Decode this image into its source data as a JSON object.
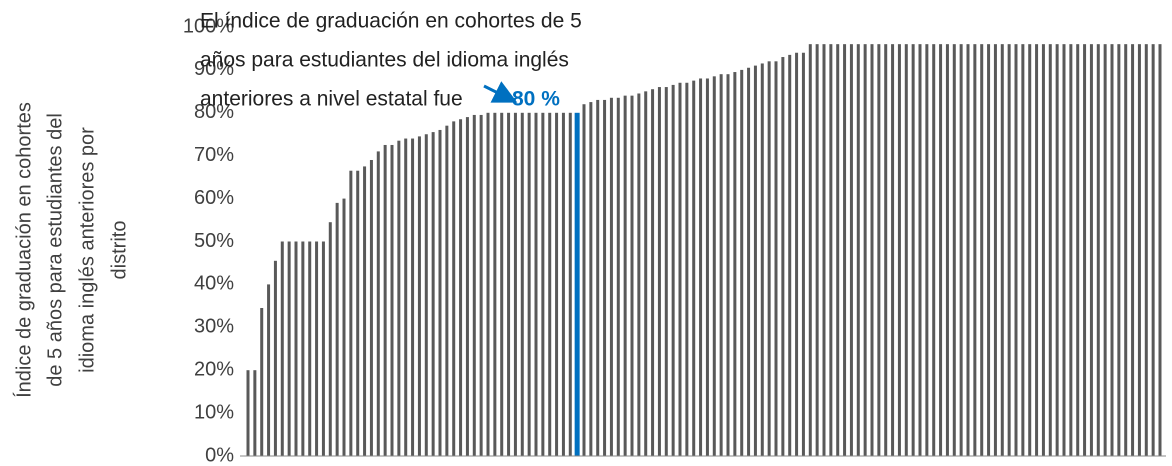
{
  "chart_data": {
    "type": "bar",
    "ylabel_lines": [
      "Índice de graduación en cohortes",
      "de 5 años para estudiantes del",
      "idioma inglés anteriores por",
      "distrito"
    ],
    "annotation_lines": [
      "El índice de graduación en cohortes de 5",
      "años para estudiantes del idioma inglés",
      "anteriores a nivel estatal fue"
    ],
    "categories": [
      null,
      null,
      null,
      null,
      null,
      null,
      null,
      null,
      null,
      null,
      null,
      null,
      null,
      null,
      null,
      null,
      null,
      null,
      null,
      null,
      null,
      null,
      null,
      null,
      null,
      null,
      null,
      null,
      null,
      null,
      null,
      null,
      null,
      null,
      null,
      null,
      null,
      null,
      null,
      null,
      null,
      null,
      null,
      null,
      null,
      null,
      null,
      null,
      null,
      null,
      null,
      null,
      null,
      null,
      null,
      null,
      null,
      null,
      null,
      null,
      null,
      null,
      null,
      null,
      null,
      null,
      null,
      null,
      null,
      null,
      null,
      null,
      null,
      null,
      null,
      null,
      null,
      null,
      null,
      null,
      null,
      null,
      null,
      null,
      null,
      null,
      null,
      null,
      null,
      null,
      null,
      null,
      null,
      null,
      null,
      null,
      null,
      null,
      null,
      null,
      null,
      null,
      null,
      null,
      null,
      null,
      null,
      null,
      null,
      null,
      null,
      null,
      null,
      null,
      null,
      null,
      null,
      null,
      null,
      null,
      null,
      null,
      null,
      null,
      null,
      null,
      null,
      null,
      null,
      null,
      null,
      null,
      null,
      null
    ],
    "values": [
      20,
      20,
      34.5,
      40,
      45.5,
      50,
      50,
      50,
      50,
      50,
      50,
      50,
      54.5,
      59,
      60,
      66.5,
      66.5,
      67.5,
      69,
      71,
      72.5,
      72.5,
      73.5,
      74,
      74,
      74.5,
      75,
      75.5,
      76,
      77,
      78,
      78.5,
      79,
      79.5,
      79.5,
      80,
      80,
      80,
      80,
      80,
      80,
      80,
      80,
      80,
      80,
      80,
      80,
      80,
      80,
      82,
      82.5,
      83,
      83,
      83.5,
      83.5,
      84,
      84,
      84.5,
      85,
      85.5,
      86,
      86,
      86.5,
      87,
      87,
      87.5,
      88,
      88,
      88.5,
      89,
      89,
      89.5,
      90,
      90.5,
      91,
      91.5,
      92,
      92,
      93,
      93.5,
      94,
      94,
      96,
      96,
      96,
      96,
      96,
      96,
      96,
      96,
      96,
      96,
      96,
      96,
      96,
      96,
      96,
      96,
      96,
      96,
      96,
      96,
      96,
      96,
      96,
      96,
      96,
      96,
      96,
      96,
      96,
      96,
      96,
      96,
      96,
      96,
      96,
      96,
      96,
      96,
      96,
      96,
      96,
      96,
      96,
      96,
      96,
      96,
      96,
      96,
      96,
      96,
      96,
      96
    ],
    "color": "#595959",
    "highlight": {
      "index": 48,
      "color": "#0070c0",
      "label": "80 %"
    },
    "ylim": [
      0,
      100
    ],
    "yticks": [
      {
        "value": 0,
        "label": "0%"
      },
      {
        "value": 10,
        "label": "10%"
      },
      {
        "value": 20,
        "label": "20%"
      },
      {
        "value": 30,
        "label": "30%"
      },
      {
        "value": 40,
        "label": "40%"
      },
      {
        "value": 50,
        "label": "50%"
      },
      {
        "value": 60,
        "label": "60%"
      },
      {
        "value": 70,
        "label": "70%"
      },
      {
        "value": 80,
        "label": "80%"
      },
      {
        "value": 90,
        "label": "90%"
      },
      {
        "value": 100,
        "label": "100%"
      }
    ],
    "grid": false
  }
}
